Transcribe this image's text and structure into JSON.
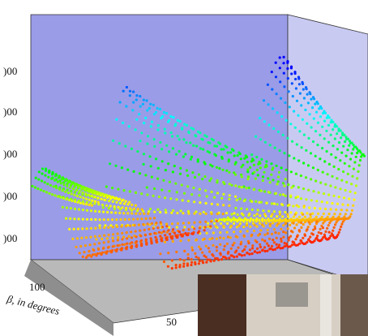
{
  "axis": {
    "y_tick_labels": [
      ")00",
      ")00",
      ")00",
      ")00",
      ")00"
    ],
    "x_tick_labels": [
      "100",
      "50"
    ],
    "x_label": "β, in degrees"
  }
}
